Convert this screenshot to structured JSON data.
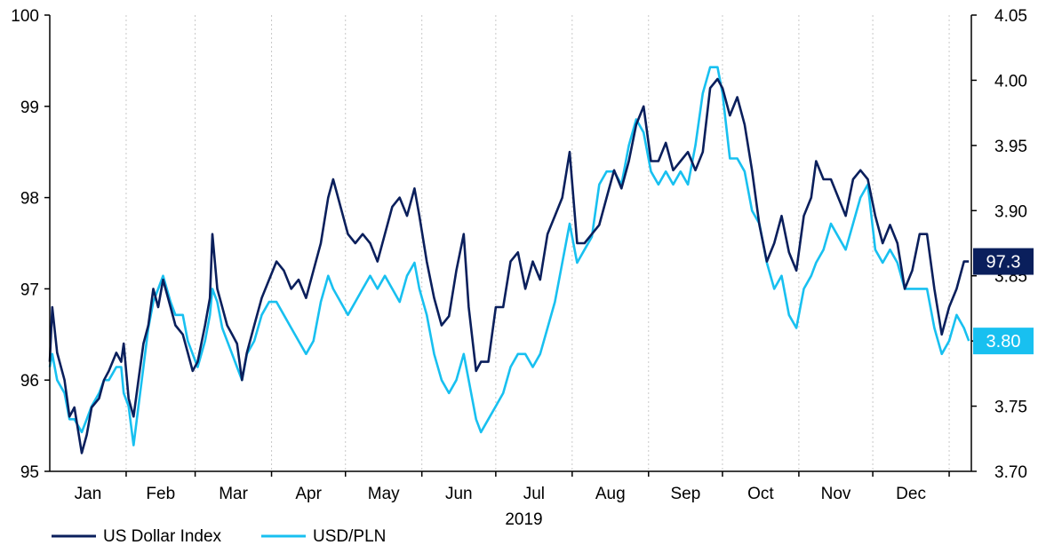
{
  "chart_data": {
    "type": "line",
    "xlabel": "2019",
    "months": [
      "Jan",
      "Feb",
      "Mar",
      "Apr",
      "May",
      "Jun",
      "Jul",
      "Aug",
      "Sep",
      "Oct",
      "Nov",
      "Dec"
    ],
    "left_axis": {
      "ylim": [
        95,
        100
      ],
      "ticks": [
        "95",
        "96",
        "97",
        "98",
        "99",
        "100"
      ]
    },
    "right_axis": {
      "ylim": [
        3.7,
        4.05
      ],
      "ticks": [
        "3.70",
        "3.75",
        "3.80",
        "3.85",
        "3.90",
        "3.95",
        "4.00",
        "4.05"
      ]
    },
    "grid": "vertical dashed at month boundaries",
    "legend_position": "bottom-left",
    "series": [
      {
        "name": "US Dollar Index",
        "axis": "left",
        "color": "#0a1f5c",
        "last_value_label": "97.3",
        "points": [
          [
            "2019-01-01",
            96.2
          ],
          [
            "2019-01-02",
            96.8
          ],
          [
            "2019-01-04",
            96.3
          ],
          [
            "2019-01-07",
            96.0
          ],
          [
            "2019-01-09",
            95.6
          ],
          [
            "2019-01-11",
            95.7
          ],
          [
            "2019-01-14",
            95.2
          ],
          [
            "2019-01-16",
            95.4
          ],
          [
            "2019-01-18",
            95.7
          ],
          [
            "2019-01-21",
            95.8
          ],
          [
            "2019-01-23",
            96.0
          ],
          [
            "2019-01-25",
            96.1
          ],
          [
            "2019-01-28",
            96.3
          ],
          [
            "2019-01-30",
            96.2
          ],
          [
            "2019-01-31",
            96.4
          ],
          [
            "2019-02-02",
            95.8
          ],
          [
            "2019-02-04",
            95.6
          ],
          [
            "2019-02-06",
            96.0
          ],
          [
            "2019-02-08",
            96.4
          ],
          [
            "2019-02-10",
            96.6
          ],
          [
            "2019-02-12",
            97.0
          ],
          [
            "2019-02-14",
            96.8
          ],
          [
            "2019-02-16",
            97.1
          ],
          [
            "2019-02-19",
            96.8
          ],
          [
            "2019-02-21",
            96.6
          ],
          [
            "2019-02-24",
            96.5
          ],
          [
            "2019-02-26",
            96.3
          ],
          [
            "2019-02-28",
            96.1
          ],
          [
            "2019-03-02",
            96.2
          ],
          [
            "2019-03-05",
            96.6
          ],
          [
            "2019-03-07",
            96.9
          ],
          [
            "2019-03-08",
            97.6
          ],
          [
            "2019-03-10",
            97.0
          ],
          [
            "2019-03-12",
            96.8
          ],
          [
            "2019-03-14",
            96.6
          ],
          [
            "2019-03-16",
            96.5
          ],
          [
            "2019-03-18",
            96.4
          ],
          [
            "2019-03-20",
            96.0
          ],
          [
            "2019-03-22",
            96.3
          ],
          [
            "2019-03-25",
            96.6
          ],
          [
            "2019-03-28",
            96.9
          ],
          [
            "2019-03-31",
            97.1
          ],
          [
            "2019-04-03",
            97.3
          ],
          [
            "2019-04-06",
            97.2
          ],
          [
            "2019-04-09",
            97.0
          ],
          [
            "2019-04-12",
            97.1
          ],
          [
            "2019-04-15",
            96.9
          ],
          [
            "2019-04-18",
            97.2
          ],
          [
            "2019-04-21",
            97.5
          ],
          [
            "2019-04-24",
            98.0
          ],
          [
            "2019-04-26",
            98.2
          ],
          [
            "2019-04-29",
            97.9
          ],
          [
            "2019-05-02",
            97.6
          ],
          [
            "2019-05-05",
            97.5
          ],
          [
            "2019-05-08",
            97.6
          ],
          [
            "2019-05-11",
            97.5
          ],
          [
            "2019-05-14",
            97.3
          ],
          [
            "2019-05-17",
            97.6
          ],
          [
            "2019-05-20",
            97.9
          ],
          [
            "2019-05-23",
            98.0
          ],
          [
            "2019-05-26",
            97.8
          ],
          [
            "2019-05-29",
            98.1
          ],
          [
            "2019-05-31",
            97.8
          ],
          [
            "2019-06-03",
            97.3
          ],
          [
            "2019-06-06",
            96.9
          ],
          [
            "2019-06-09",
            96.6
          ],
          [
            "2019-06-12",
            96.7
          ],
          [
            "2019-06-15",
            97.2
          ],
          [
            "2019-06-18",
            97.6
          ],
          [
            "2019-06-20",
            96.8
          ],
          [
            "2019-06-23",
            96.1
          ],
          [
            "2019-06-25",
            96.2
          ],
          [
            "2019-06-28",
            96.2
          ],
          [
            "2019-07-01",
            96.8
          ],
          [
            "2019-07-04",
            96.8
          ],
          [
            "2019-07-07",
            97.3
          ],
          [
            "2019-07-10",
            97.4
          ],
          [
            "2019-07-13",
            97.0
          ],
          [
            "2019-07-16",
            97.3
          ],
          [
            "2019-07-19",
            97.1
          ],
          [
            "2019-07-22",
            97.6
          ],
          [
            "2019-07-25",
            97.8
          ],
          [
            "2019-07-28",
            98.0
          ],
          [
            "2019-07-31",
            98.5
          ],
          [
            "2019-08-03",
            97.5
          ],
          [
            "2019-08-06",
            97.5
          ],
          [
            "2019-08-09",
            97.6
          ],
          [
            "2019-08-12",
            97.7
          ],
          [
            "2019-08-15",
            98.0
          ],
          [
            "2019-08-18",
            98.3
          ],
          [
            "2019-08-21",
            98.1
          ],
          [
            "2019-08-24",
            98.4
          ],
          [
            "2019-08-27",
            98.8
          ],
          [
            "2019-08-30",
            99.0
          ],
          [
            "2019-09-02",
            98.4
          ],
          [
            "2019-09-05",
            98.4
          ],
          [
            "2019-09-08",
            98.6
          ],
          [
            "2019-09-11",
            98.3
          ],
          [
            "2019-09-14",
            98.4
          ],
          [
            "2019-09-17",
            98.5
          ],
          [
            "2019-09-20",
            98.3
          ],
          [
            "2019-09-23",
            98.5
          ],
          [
            "2019-09-26",
            99.2
          ],
          [
            "2019-09-29",
            99.3
          ],
          [
            "2019-10-01",
            99.2
          ],
          [
            "2019-10-04",
            98.9
          ],
          [
            "2019-10-07",
            99.1
          ],
          [
            "2019-10-10",
            98.8
          ],
          [
            "2019-10-13",
            98.3
          ],
          [
            "2019-10-16",
            97.7
          ],
          [
            "2019-10-19",
            97.3
          ],
          [
            "2019-10-22",
            97.5
          ],
          [
            "2019-10-25",
            97.8
          ],
          [
            "2019-10-28",
            97.4
          ],
          [
            "2019-10-31",
            97.2
          ],
          [
            "2019-11-03",
            97.8
          ],
          [
            "2019-11-06",
            98.0
          ],
          [
            "2019-11-08",
            98.4
          ],
          [
            "2019-11-11",
            98.2
          ],
          [
            "2019-11-14",
            98.2
          ],
          [
            "2019-11-17",
            98.0
          ],
          [
            "2019-11-20",
            97.8
          ],
          [
            "2019-11-23",
            98.2
          ],
          [
            "2019-11-26",
            98.3
          ],
          [
            "2019-11-29",
            98.2
          ],
          [
            "2019-12-02",
            97.8
          ],
          [
            "2019-12-05",
            97.5
          ],
          [
            "2019-12-08",
            97.7
          ],
          [
            "2019-12-11",
            97.5
          ],
          [
            "2019-12-14",
            97.0
          ],
          [
            "2019-12-17",
            97.2
          ],
          [
            "2019-12-20",
            97.6
          ],
          [
            "2019-12-23",
            97.6
          ],
          [
            "2019-12-26",
            97.0
          ],
          [
            "2019-12-29",
            96.5
          ],
          [
            "2020-01-01",
            96.8
          ],
          [
            "2020-01-04",
            97.0
          ],
          [
            "2020-01-07",
            97.3
          ],
          [
            "2020-01-09",
            97.3
          ]
        ]
      },
      {
        "name": "USD/PLN",
        "axis": "right",
        "color": "#18c0f0",
        "last_value_label": "3.80",
        "points": [
          [
            "2019-01-01",
            3.78
          ],
          [
            "2019-01-02",
            3.79
          ],
          [
            "2019-01-04",
            3.77
          ],
          [
            "2019-01-07",
            3.76
          ],
          [
            "2019-01-09",
            3.74
          ],
          [
            "2019-01-11",
            3.74
          ],
          [
            "2019-01-14",
            3.73
          ],
          [
            "2019-01-16",
            3.74
          ],
          [
            "2019-01-18",
            3.75
          ],
          [
            "2019-01-21",
            3.76
          ],
          [
            "2019-01-23",
            3.77
          ],
          [
            "2019-01-25",
            3.77
          ],
          [
            "2019-01-28",
            3.78
          ],
          [
            "2019-01-30",
            3.78
          ],
          [
            "2019-01-31",
            3.76
          ],
          [
            "2019-02-02",
            3.75
          ],
          [
            "2019-02-04",
            3.72
          ],
          [
            "2019-02-06",
            3.75
          ],
          [
            "2019-02-08",
            3.78
          ],
          [
            "2019-02-10",
            3.81
          ],
          [
            "2019-02-12",
            3.83
          ],
          [
            "2019-02-14",
            3.84
          ],
          [
            "2019-02-16",
            3.85
          ],
          [
            "2019-02-19",
            3.83
          ],
          [
            "2019-02-21",
            3.82
          ],
          [
            "2019-02-24",
            3.82
          ],
          [
            "2019-02-26",
            3.8
          ],
          [
            "2019-02-28",
            3.79
          ],
          [
            "2019-03-02",
            3.78
          ],
          [
            "2019-03-05",
            3.8
          ],
          [
            "2019-03-07",
            3.82
          ],
          [
            "2019-03-08",
            3.84
          ],
          [
            "2019-03-10",
            3.83
          ],
          [
            "2019-03-12",
            3.81
          ],
          [
            "2019-03-14",
            3.8
          ],
          [
            "2019-03-16",
            3.79
          ],
          [
            "2019-03-18",
            3.78
          ],
          [
            "2019-03-20",
            3.77
          ],
          [
            "2019-03-22",
            3.79
          ],
          [
            "2019-03-25",
            3.8
          ],
          [
            "2019-03-28",
            3.82
          ],
          [
            "2019-03-31",
            3.83
          ],
          [
            "2019-04-03",
            3.83
          ],
          [
            "2019-04-06",
            3.82
          ],
          [
            "2019-04-09",
            3.81
          ],
          [
            "2019-04-12",
            3.8
          ],
          [
            "2019-04-15",
            3.79
          ],
          [
            "2019-04-18",
            3.8
          ],
          [
            "2019-04-21",
            3.83
          ],
          [
            "2019-04-24",
            3.85
          ],
          [
            "2019-04-26",
            3.84
          ],
          [
            "2019-04-29",
            3.83
          ],
          [
            "2019-05-02",
            3.82
          ],
          [
            "2019-05-05",
            3.83
          ],
          [
            "2019-05-08",
            3.84
          ],
          [
            "2019-05-11",
            3.85
          ],
          [
            "2019-05-14",
            3.84
          ],
          [
            "2019-05-17",
            3.85
          ],
          [
            "2019-05-20",
            3.84
          ],
          [
            "2019-05-23",
            3.83
          ],
          [
            "2019-05-26",
            3.85
          ],
          [
            "2019-05-29",
            3.86
          ],
          [
            "2019-05-31",
            3.84
          ],
          [
            "2019-06-03",
            3.82
          ],
          [
            "2019-06-06",
            3.79
          ],
          [
            "2019-06-09",
            3.77
          ],
          [
            "2019-06-12",
            3.76
          ],
          [
            "2019-06-15",
            3.77
          ],
          [
            "2019-06-18",
            3.79
          ],
          [
            "2019-06-20",
            3.77
          ],
          [
            "2019-06-23",
            3.74
          ],
          [
            "2019-06-25",
            3.73
          ],
          [
            "2019-06-28",
            3.74
          ],
          [
            "2019-07-01",
            3.75
          ],
          [
            "2019-07-04",
            3.76
          ],
          [
            "2019-07-07",
            3.78
          ],
          [
            "2019-07-10",
            3.79
          ],
          [
            "2019-07-13",
            3.79
          ],
          [
            "2019-07-16",
            3.78
          ],
          [
            "2019-07-19",
            3.79
          ],
          [
            "2019-07-22",
            3.81
          ],
          [
            "2019-07-25",
            3.83
          ],
          [
            "2019-07-28",
            3.86
          ],
          [
            "2019-07-31",
            3.89
          ],
          [
            "2019-08-03",
            3.86
          ],
          [
            "2019-08-06",
            3.87
          ],
          [
            "2019-08-09",
            3.88
          ],
          [
            "2019-08-12",
            3.92
          ],
          [
            "2019-08-15",
            3.93
          ],
          [
            "2019-08-18",
            3.93
          ],
          [
            "2019-08-21",
            3.92
          ],
          [
            "2019-08-24",
            3.95
          ],
          [
            "2019-08-27",
            3.97
          ],
          [
            "2019-08-30",
            3.96
          ],
          [
            "2019-09-02",
            3.93
          ],
          [
            "2019-09-05",
            3.92
          ],
          [
            "2019-09-08",
            3.93
          ],
          [
            "2019-09-11",
            3.92
          ],
          [
            "2019-09-14",
            3.93
          ],
          [
            "2019-09-17",
            3.92
          ],
          [
            "2019-09-20",
            3.95
          ],
          [
            "2019-09-23",
            3.99
          ],
          [
            "2019-09-26",
            4.01
          ],
          [
            "2019-09-29",
            4.01
          ],
          [
            "2019-10-01",
            3.99
          ],
          [
            "2019-10-04",
            3.94
          ],
          [
            "2019-10-07",
            3.94
          ],
          [
            "2019-10-10",
            3.93
          ],
          [
            "2019-10-13",
            3.9
          ],
          [
            "2019-10-16",
            3.89
          ],
          [
            "2019-10-19",
            3.86
          ],
          [
            "2019-10-22",
            3.84
          ],
          [
            "2019-10-25",
            3.85
          ],
          [
            "2019-10-28",
            3.82
          ],
          [
            "2019-10-31",
            3.81
          ],
          [
            "2019-11-03",
            3.84
          ],
          [
            "2019-11-06",
            3.85
          ],
          [
            "2019-11-08",
            3.86
          ],
          [
            "2019-11-11",
            3.87
          ],
          [
            "2019-11-14",
            3.89
          ],
          [
            "2019-11-17",
            3.88
          ],
          [
            "2019-11-20",
            3.87
          ],
          [
            "2019-11-23",
            3.89
          ],
          [
            "2019-11-26",
            3.91
          ],
          [
            "2019-11-29",
            3.92
          ],
          [
            "2019-12-02",
            3.87
          ],
          [
            "2019-12-05",
            3.86
          ],
          [
            "2019-12-08",
            3.87
          ],
          [
            "2019-12-11",
            3.86
          ],
          [
            "2019-12-14",
            3.84
          ],
          [
            "2019-12-17",
            3.84
          ],
          [
            "2019-12-20",
            3.84
          ],
          [
            "2019-12-23",
            3.84
          ],
          [
            "2019-12-26",
            3.81
          ],
          [
            "2019-12-29",
            3.79
          ],
          [
            "2020-01-01",
            3.8
          ],
          [
            "2020-01-04",
            3.82
          ],
          [
            "2020-01-07",
            3.81
          ],
          [
            "2020-01-09",
            3.8
          ]
        ]
      }
    ]
  }
}
